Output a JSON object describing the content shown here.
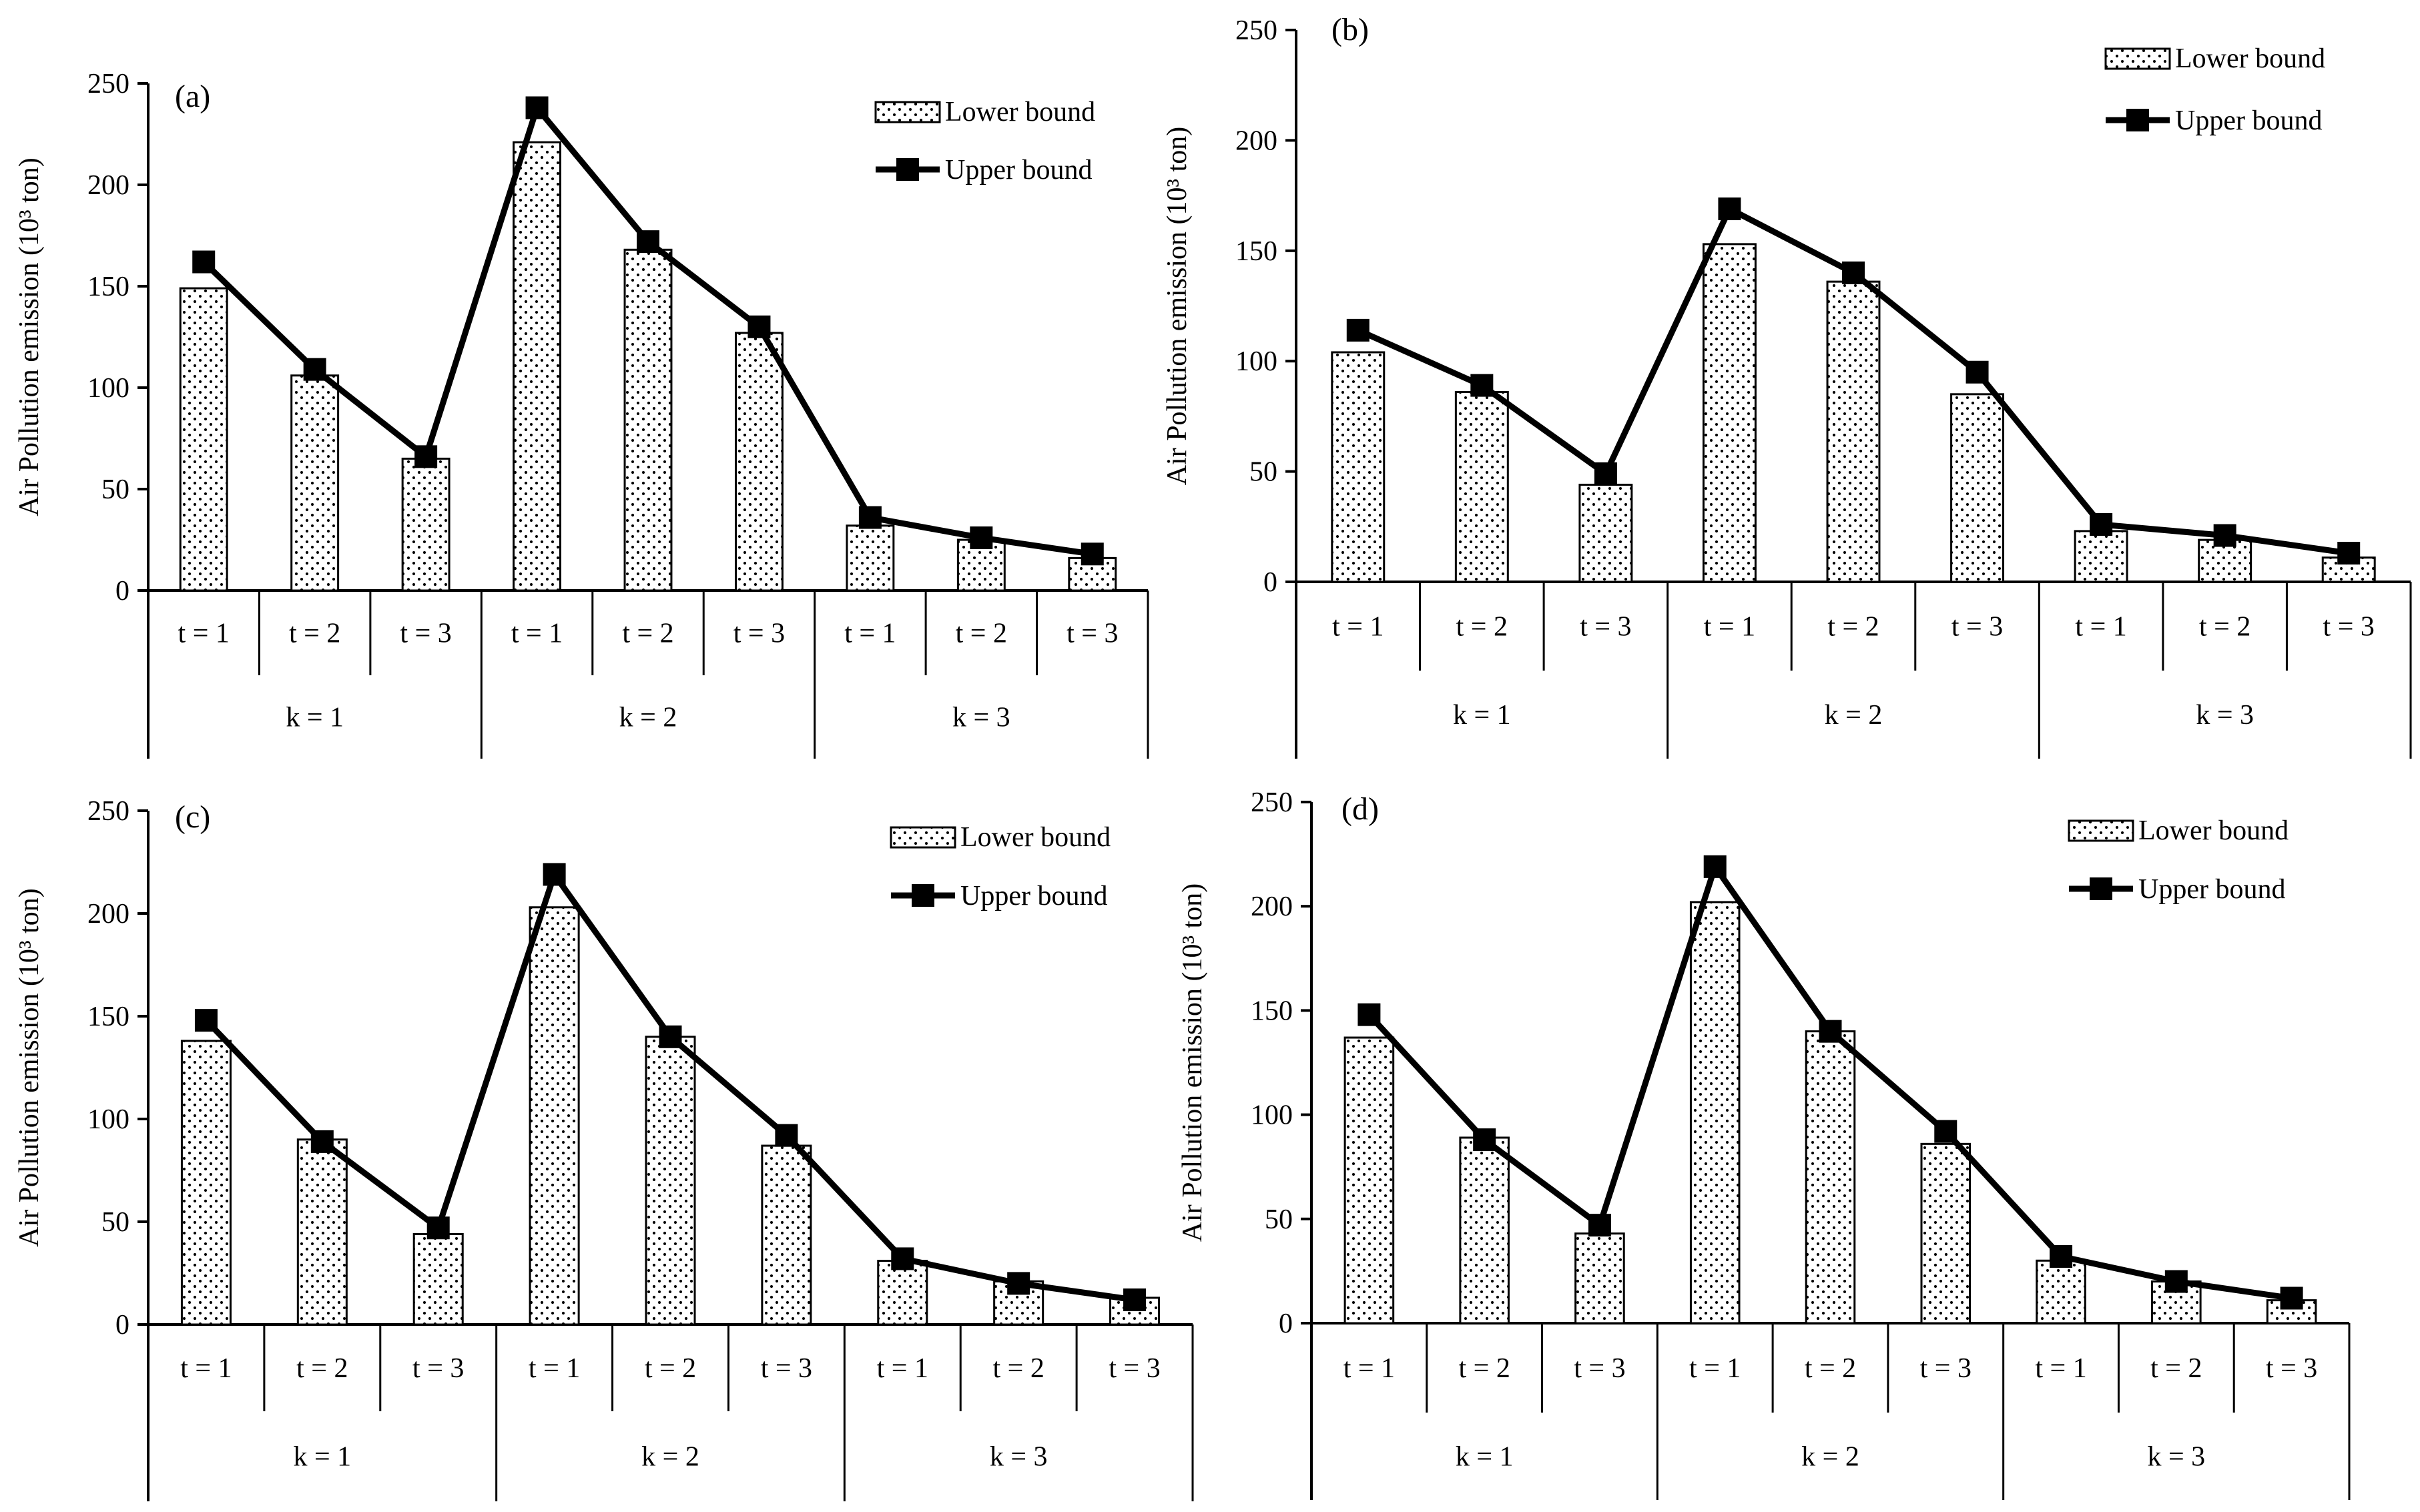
{
  "chart_data": [
    {
      "type": "bar",
      "panel_label": "(a)",
      "ylabel": "Air Pollution emission (10³ ton)",
      "ylim": [
        0,
        250
      ],
      "yticks": [
        "0",
        "50",
        "100",
        "150",
        "200",
        "250"
      ],
      "categories": [
        "t = 1",
        "t = 2",
        "t = 3",
        "t = 1",
        "t = 2",
        "t = 3",
        "t = 1",
        "t = 2",
        "t = 3"
      ],
      "groups": [
        "k = 1",
        "k = 2",
        "k = 3"
      ],
      "legend": [
        "Lower bound",
        "Upper bound"
      ],
      "series": [
        {
          "name": "Lower bound",
          "kind": "bar",
          "values": [
            149,
            106,
            65,
            221,
            168,
            127,
            32,
            25,
            16
          ]
        },
        {
          "name": "Upper bound",
          "kind": "line",
          "values": [
            162,
            109,
            66,
            238,
            172,
            130,
            36,
            26,
            18
          ]
        }
      ]
    },
    {
      "type": "bar",
      "panel_label": "(b)",
      "ylabel": "Air Pollution emission (10³ ton)",
      "ylim": [
        0,
        250
      ],
      "yticks": [
        "0",
        "50",
        "100",
        "150",
        "200",
        "250"
      ],
      "categories": [
        "t = 1",
        "t = 2",
        "t = 3",
        "t = 1",
        "t = 2",
        "t = 3",
        "t = 1",
        "t = 2",
        "t = 3"
      ],
      "groups": [
        "k = 1",
        "k = 2",
        "k = 3"
      ],
      "legend": [
        "Lower bound",
        "Upper bound"
      ],
      "series": [
        {
          "name": "Lower bound",
          "kind": "bar",
          "values": [
            104,
            86,
            44,
            153,
            136,
            85,
            23,
            19,
            11
          ]
        },
        {
          "name": "Upper bound",
          "kind": "line",
          "values": [
            114,
            89,
            49,
            169,
            140,
            95,
            26,
            21,
            13
          ]
        }
      ]
    },
    {
      "type": "bar",
      "panel_label": "(c)",
      "ylabel": "Air Pollution emission (10³ ton)",
      "ylim": [
        0,
        250
      ],
      "yticks": [
        "0",
        "50",
        "100",
        "150",
        "200",
        "250"
      ],
      "categories": [
        "t = 1",
        "t = 2",
        "t = 3",
        "t = 1",
        "t = 2",
        "t = 3",
        "t = 1",
        "t = 2",
        "t = 3"
      ],
      "groups": [
        "k = 1",
        "k = 2",
        "k = 3"
      ],
      "legend": [
        "Lower bound",
        "Upper bound"
      ],
      "series": [
        {
          "name": "Lower bound",
          "kind": "bar",
          "values": [
            138,
            90,
            44,
            203,
            140,
            87,
            31,
            21,
            13
          ]
        },
        {
          "name": "Upper bound",
          "kind": "line",
          "values": [
            148,
            89,
            47,
            219,
            140,
            92,
            32,
            20,
            12
          ]
        }
      ]
    },
    {
      "type": "bar",
      "panel_label": "(d)",
      "ylabel": "Air Pollution emission (10³ ton)",
      "ylim": [
        0,
        250
      ],
      "yticks": [
        "0",
        "50",
        "100",
        "150",
        "200",
        "250"
      ],
      "categories": [
        "t = 1",
        "t = 2",
        "t = 3",
        "t = 1",
        "t = 2",
        "t = 3",
        "t = 1",
        "t = 2",
        "t = 3"
      ],
      "groups": [
        "k = 1",
        "k = 2",
        "k = 3"
      ],
      "legend": [
        "Lower bound",
        "Upper bound"
      ],
      "series": [
        {
          "name": "Lower bound",
          "kind": "bar",
          "values": [
            137,
            89,
            43,
            202,
            140,
            86,
            30,
            20,
            11
          ]
        },
        {
          "name": "Upper bound",
          "kind": "line",
          "values": [
            148,
            88,
            47,
            219,
            140,
            92,
            32,
            20,
            12
          ]
        }
      ]
    }
  ]
}
